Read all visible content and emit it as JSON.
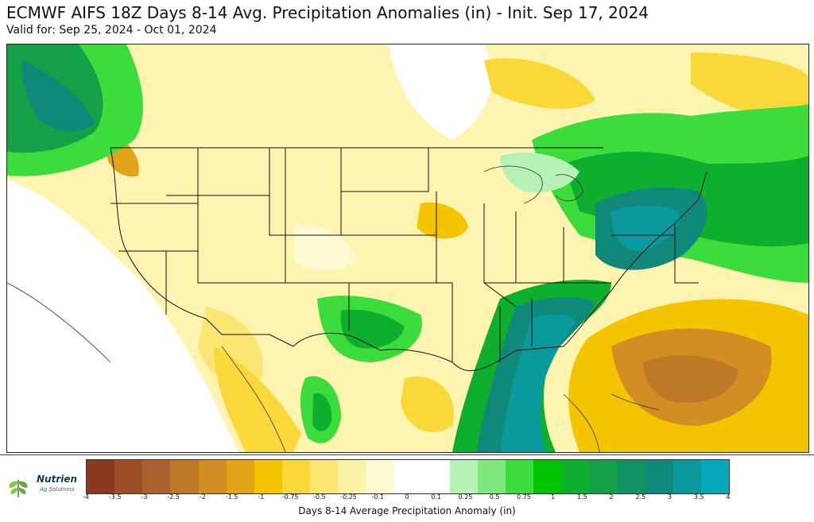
{
  "header": {
    "title": "ECMWF AIFS 18Z Days 8-14 Avg. Precipitation Anomalies (in) - Init. Sep 17, 2024",
    "subtitle": "Valid for: Sep 25, 2024 - Oct 01, 2024"
  },
  "logo": {
    "brand": "Nutrien",
    "sub": "Ag Solutions"
  },
  "colorbar": {
    "label": "Days 8-14 Average Precipitation Anomaly (in)",
    "ticks": [
      "-4",
      "-3.5",
      "-3",
      "-2.5",
      "-2",
      "-1.5",
      "-1",
      "-0.75",
      "-0.5",
      "-0.25",
      "-0.1",
      "0",
      "0.1",
      "0.25",
      "0.5",
      "0.75",
      "1",
      "1.5",
      "2",
      "2.5",
      "3",
      "3.5",
      "4"
    ],
    "colors": [
      "#8c3a1e",
      "#9c4e26",
      "#a8622e",
      "#bf7a28",
      "#d28e22",
      "#e2a418",
      "#f5c400",
      "#fbd83a",
      "#fce673",
      "#fcf2a6",
      "#fdf9d0",
      "#ffffff",
      "#ffffff",
      "#b6f2b6",
      "#7ee87e",
      "#3cdc3c",
      "#00c400",
      "#0eae2e",
      "#14a046",
      "#129462",
      "#10887a",
      "#0a9a9e",
      "#06a8bc"
    ]
  },
  "map": {
    "background": "#ffffff",
    "border_color": "#111111"
  }
}
